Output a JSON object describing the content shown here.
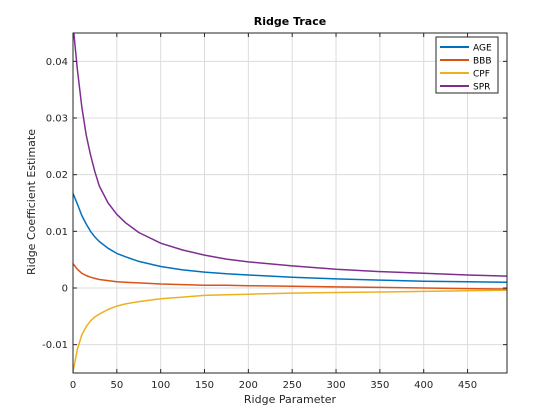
{
  "chart_data": {
    "type": "line",
    "title": "Ridge Trace",
    "xlabel": "Ridge Parameter",
    "ylabel": "Ridge Coefficient Estimate",
    "xlim": [
      0,
      495
    ],
    "ylim": [
      -0.015,
      0.045
    ],
    "xticks": [
      0,
      50,
      100,
      150,
      200,
      250,
      300,
      350,
      400,
      450
    ],
    "yticks": [
      -0.01,
      0,
      0.01,
      0.02,
      0.03,
      0.04
    ],
    "ytick_labels": [
      "-0.01",
      "0",
      "0.01",
      "0.02",
      "0.03",
      "0.04"
    ],
    "grid": true,
    "legend_position": "top-right",
    "x": [
      0,
      5,
      10,
      15,
      20,
      25,
      30,
      40,
      50,
      60,
      75,
      100,
      125,
      150,
      175,
      200,
      250,
      300,
      350,
      400,
      450,
      495
    ],
    "series": [
      {
        "name": "AGE",
        "color": "#0072BD",
        "values": [
          0.0167,
          0.0148,
          0.0128,
          0.0113,
          0.01,
          0.009,
          0.0082,
          0.007,
          0.0061,
          0.0055,
          0.0047,
          0.0038,
          0.0032,
          0.0028,
          0.0025,
          0.0023,
          0.0019,
          0.0016,
          0.0014,
          0.0012,
          0.0011,
          0.001
        ]
      },
      {
        "name": "BBB",
        "color": "#D95319",
        "values": [
          0.0043,
          0.0033,
          0.0026,
          0.0022,
          0.0019,
          0.0017,
          0.0015,
          0.0013,
          0.0011,
          0.001,
          0.0009,
          0.0007,
          0.0006,
          0.0005,
          0.0005,
          0.0004,
          0.0003,
          0.0002,
          0.0001,
          0.0,
          -0.0001,
          -0.0002
        ]
      },
      {
        "name": "CPF",
        "color": "#EDB120",
        "values": [
          -0.0148,
          -0.0108,
          -0.0083,
          -0.0068,
          -0.0058,
          -0.0051,
          -0.0046,
          -0.0038,
          -0.0032,
          -0.0028,
          -0.0024,
          -0.0019,
          -0.0016,
          -0.0013,
          -0.0012,
          -0.0011,
          -0.0009,
          -0.0008,
          -0.0007,
          -0.0006,
          -0.0005,
          -0.0004
        ]
      },
      {
        "name": "SPR",
        "color": "#7E2F8E",
        "values": [
          0.0465,
          0.0385,
          0.032,
          0.027,
          0.0235,
          0.0205,
          0.018,
          0.015,
          0.013,
          0.0115,
          0.0098,
          0.0079,
          0.0067,
          0.0058,
          0.0051,
          0.0046,
          0.0039,
          0.0033,
          0.0029,
          0.0026,
          0.0023,
          0.0021
        ]
      }
    ]
  }
}
